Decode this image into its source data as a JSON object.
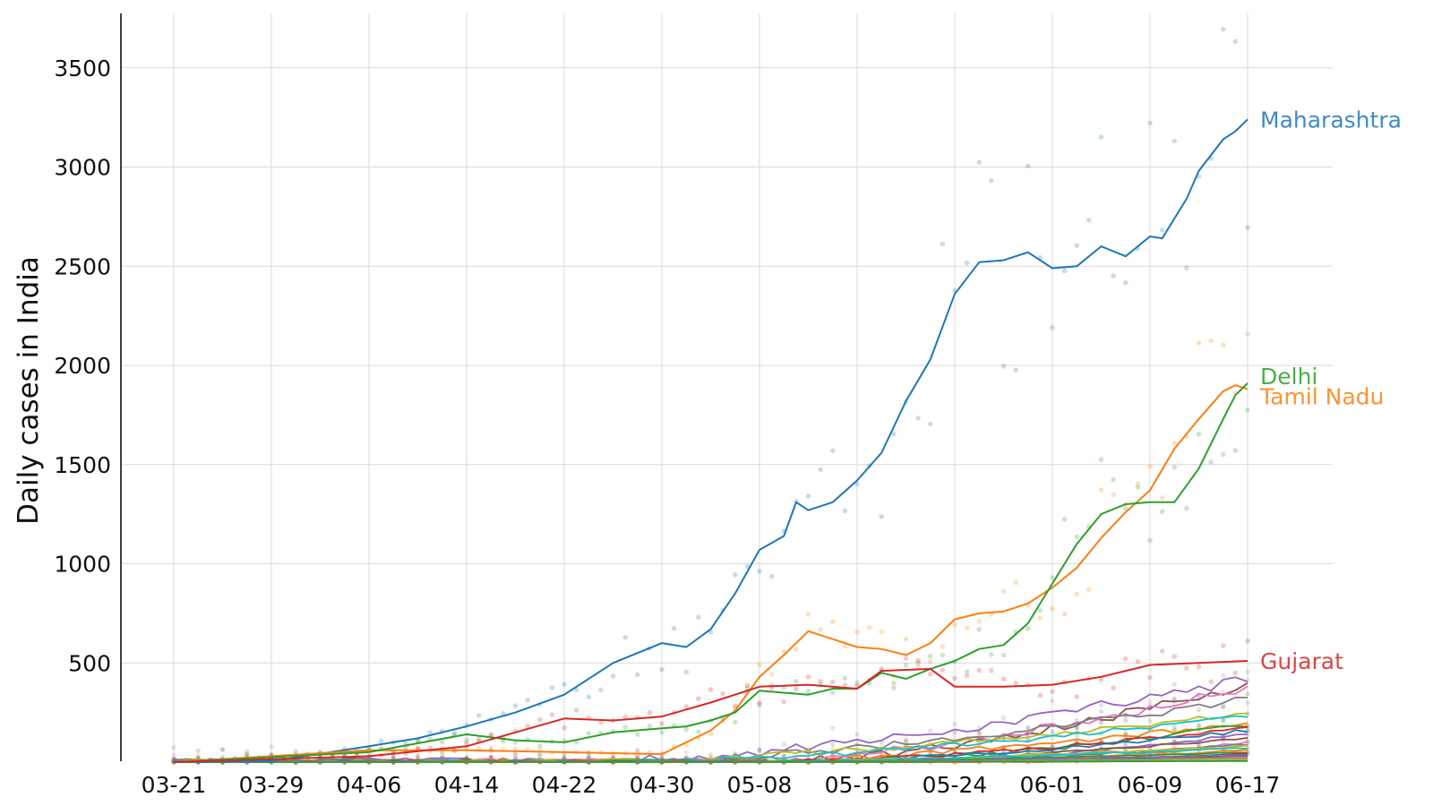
{
  "chart_data": {
    "type": "line",
    "ylabel": "Daily cases in India",
    "xlabel": "",
    "ylim": [
      0,
      3800
    ],
    "grid": true,
    "x_ticks": [
      "03-21",
      "03-29",
      "04-06",
      "04-14",
      "04-22",
      "04-30",
      "05-08",
      "05-16",
      "05-24",
      "06-01",
      "06-09",
      "06-17"
    ],
    "y_ticks": [
      500,
      1000,
      1500,
      2000,
      2500,
      3000,
      3500
    ],
    "colors": {
      "Maharashtra": "#1f77b4",
      "Tamil Nadu": "#ff7f0e",
      "Delhi": "#2ca02c",
      "Gujarat": "#d62728",
      "other": [
        "#9467bd",
        "#8c564b",
        "#e377c2",
        "#7f7f7f",
        "#bcbd22",
        "#17becf"
      ]
    },
    "labeled_series": [
      {
        "name": "Maharashtra",
        "color": "#1f77b4",
        "points": [
          [
            "03-21",
            0
          ],
          [
            "03-29",
            5
          ],
          [
            "04-06",
            80
          ],
          [
            "04-10",
            120
          ],
          [
            "04-14",
            180
          ],
          [
            "04-18",
            250
          ],
          [
            "04-22",
            340
          ],
          [
            "04-26",
            500
          ],
          [
            "04-30",
            600
          ],
          [
            "05-02",
            580
          ],
          [
            "05-04",
            670
          ],
          [
            "05-06",
            850
          ],
          [
            "05-08",
            1070
          ],
          [
            "05-10",
            1140
          ],
          [
            "05-11",
            1310
          ],
          [
            "05-12",
            1270
          ],
          [
            "05-14",
            1310
          ],
          [
            "05-16",
            1420
          ],
          [
            "05-18",
            1560
          ],
          [
            "05-20",
            1820
          ],
          [
            "05-22",
            2030
          ],
          [
            "05-24",
            2360
          ],
          [
            "05-26",
            2520
          ],
          [
            "05-28",
            2530
          ],
          [
            "05-30",
            2570
          ],
          [
            "06-01",
            2490
          ],
          [
            "06-03",
            2500
          ],
          [
            "06-05",
            2600
          ],
          [
            "06-07",
            2550
          ],
          [
            "06-09",
            2650
          ],
          [
            "06-10",
            2640
          ],
          [
            "06-12",
            2840
          ],
          [
            "06-13",
            2980
          ],
          [
            "06-15",
            3140
          ],
          [
            "06-16",
            3180
          ],
          [
            "06-17",
            3240
          ]
        ]
      },
      {
        "name": "Tamil Nadu",
        "color": "#ff7f0e",
        "points": [
          [
            "03-21",
            0
          ],
          [
            "04-06",
            60
          ],
          [
            "04-14",
            60
          ],
          [
            "04-22",
            50
          ],
          [
            "04-30",
            40
          ],
          [
            "05-04",
            160
          ],
          [
            "05-06",
            260
          ],
          [
            "05-08",
            430
          ],
          [
            "05-10",
            540
          ],
          [
            "05-12",
            660
          ],
          [
            "05-14",
            620
          ],
          [
            "05-16",
            580
          ],
          [
            "05-18",
            570
          ],
          [
            "05-20",
            540
          ],
          [
            "05-22",
            600
          ],
          [
            "05-24",
            720
          ],
          [
            "05-26",
            750
          ],
          [
            "05-28",
            760
          ],
          [
            "05-30",
            800
          ],
          [
            "06-01",
            880
          ],
          [
            "06-03",
            980
          ],
          [
            "06-05",
            1130
          ],
          [
            "06-07",
            1260
          ],
          [
            "06-09",
            1370
          ],
          [
            "06-11",
            1580
          ],
          [
            "06-13",
            1730
          ],
          [
            "06-15",
            1870
          ],
          [
            "06-16",
            1900
          ],
          [
            "06-17",
            1880
          ]
        ]
      },
      {
        "name": "Delhi",
        "color": "#2ca02c",
        "points": [
          [
            "03-21",
            0
          ],
          [
            "04-06",
            50
          ],
          [
            "04-14",
            140
          ],
          [
            "04-18",
            110
          ],
          [
            "04-22",
            100
          ],
          [
            "04-26",
            150
          ],
          [
            "04-30",
            170
          ],
          [
            "05-02",
            180
          ],
          [
            "05-04",
            210
          ],
          [
            "05-06",
            250
          ],
          [
            "05-08",
            360
          ],
          [
            "05-10",
            350
          ],
          [
            "05-12",
            340
          ],
          [
            "05-14",
            370
          ],
          [
            "05-16",
            370
          ],
          [
            "05-18",
            450
          ],
          [
            "05-20",
            420
          ],
          [
            "05-22",
            470
          ],
          [
            "05-24",
            510
          ],
          [
            "05-26",
            570
          ],
          [
            "05-28",
            590
          ],
          [
            "05-30",
            700
          ],
          [
            "06-01",
            900
          ],
          [
            "06-03",
            1100
          ],
          [
            "06-05",
            1250
          ],
          [
            "06-07",
            1300
          ],
          [
            "06-09",
            1310
          ],
          [
            "06-11",
            1310
          ],
          [
            "06-13",
            1480
          ],
          [
            "06-15",
            1730
          ],
          [
            "06-16",
            1850
          ],
          [
            "06-17",
            1910
          ]
        ]
      },
      {
        "name": "Gujarat",
        "color": "#d62728",
        "points": [
          [
            "03-21",
            0
          ],
          [
            "04-06",
            30
          ],
          [
            "04-14",
            80
          ],
          [
            "04-18",
            150
          ],
          [
            "04-22",
            220
          ],
          [
            "04-26",
            210
          ],
          [
            "04-30",
            230
          ],
          [
            "05-04",
            300
          ],
          [
            "05-08",
            380
          ],
          [
            "05-12",
            390
          ],
          [
            "05-16",
            370
          ],
          [
            "05-18",
            460
          ],
          [
            "05-22",
            470
          ],
          [
            "05-24",
            380
          ],
          [
            "05-28",
            380
          ],
          [
            "06-01",
            390
          ],
          [
            "06-05",
            430
          ],
          [
            "06-09",
            490
          ],
          [
            "06-13",
            500
          ],
          [
            "06-17",
            510
          ]
        ]
      }
    ],
    "minor_series_color_order": [
      "#9467bd",
      "#8c564b",
      "#e377c2",
      "#7f7f7f",
      "#bcbd22",
      "#17becf",
      "#ff7f0e",
      "#2ca02c",
      "#d62728",
      "#1f77b4"
    ]
  }
}
